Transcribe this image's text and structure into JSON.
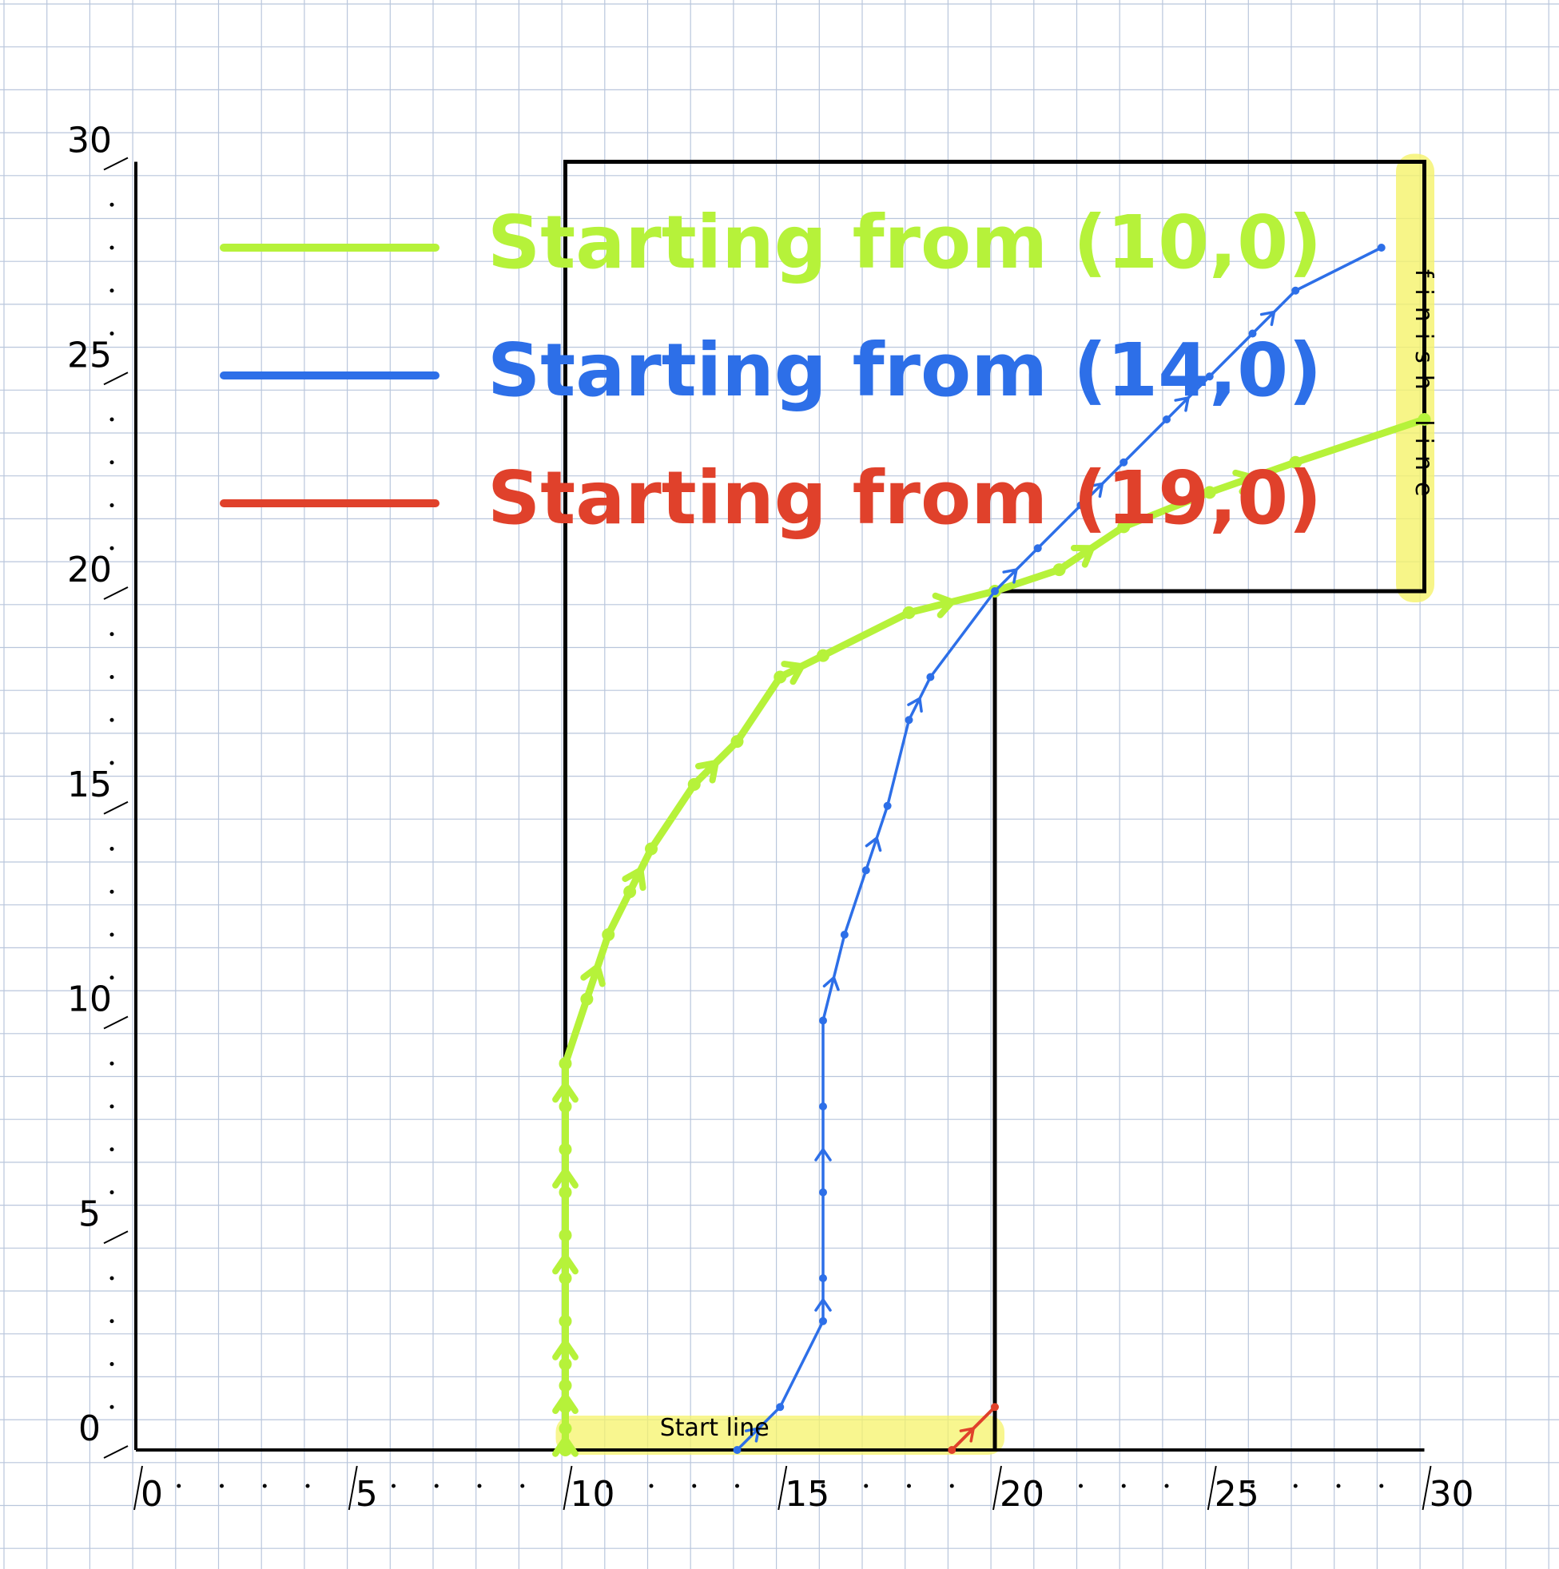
{
  "chart_data": {
    "type": "line",
    "title": "",
    "xlabel": "",
    "ylabel": "",
    "xlim": [
      0,
      30
    ],
    "ylim": [
      0,
      30
    ],
    "grid": true,
    "x_tick_labels": [
      "0",
      "5",
      "10",
      "15",
      "20",
      "25",
      "30"
    ],
    "y_tick_labels": [
      "0",
      "5",
      "10",
      "15",
      "20",
      "25",
      "30"
    ],
    "legend_position": "top",
    "series": [
      {
        "name": "Starting from (10,0)",
        "color": "#b6f23a",
        "points": [
          [
            10,
            0
          ],
          [
            10,
            0.5
          ],
          [
            10,
            1
          ],
          [
            10,
            1.5
          ],
          [
            10,
            2
          ],
          [
            10,
            3
          ],
          [
            10,
            4
          ],
          [
            10,
            5
          ],
          [
            10,
            6
          ],
          [
            10,
            7
          ],
          [
            10,
            8
          ],
          [
            10,
            9
          ],
          [
            10.5,
            10.5
          ],
          [
            11,
            12
          ],
          [
            11.5,
            13
          ],
          [
            12,
            14
          ],
          [
            13,
            15.5
          ],
          [
            14,
            16.5
          ],
          [
            15,
            18
          ],
          [
            16,
            18.5
          ],
          [
            18,
            19.5
          ],
          [
            20,
            20
          ],
          [
            21.5,
            20.5
          ],
          [
            23,
            21.5
          ],
          [
            25,
            22.3
          ],
          [
            27,
            23
          ],
          [
            30,
            24
          ]
        ]
      },
      {
        "name": "Starting from (14,0)",
        "color": "#2d6fe8",
        "points": [
          [
            14,
            0
          ],
          [
            15,
            1
          ],
          [
            16,
            3
          ],
          [
            16,
            4
          ],
          [
            16,
            6
          ],
          [
            16,
            8
          ],
          [
            16,
            10
          ],
          [
            16.5,
            12
          ],
          [
            17,
            13.5
          ],
          [
            17.5,
            15
          ],
          [
            18,
            17
          ],
          [
            18.5,
            18
          ],
          [
            20,
            20
          ],
          [
            21,
            21
          ],
          [
            22,
            22
          ],
          [
            23,
            23
          ],
          [
            24,
            24
          ],
          [
            25,
            25
          ],
          [
            26,
            26
          ],
          [
            27,
            27
          ],
          [
            29,
            28
          ]
        ]
      },
      {
        "name": "Starting from (19,0)",
        "color": "#e0412b",
        "points": [
          [
            19,
            0
          ],
          [
            20,
            1
          ]
        ]
      }
    ],
    "track_outline": [
      [
        10,
        0
      ],
      [
        10,
        30
      ],
      [
        30,
        30
      ],
      [
        30,
        20
      ],
      [
        20,
        20
      ],
      [
        20,
        0
      ]
    ],
    "annotations": [
      "Start line",
      "finish line"
    ]
  }
}
